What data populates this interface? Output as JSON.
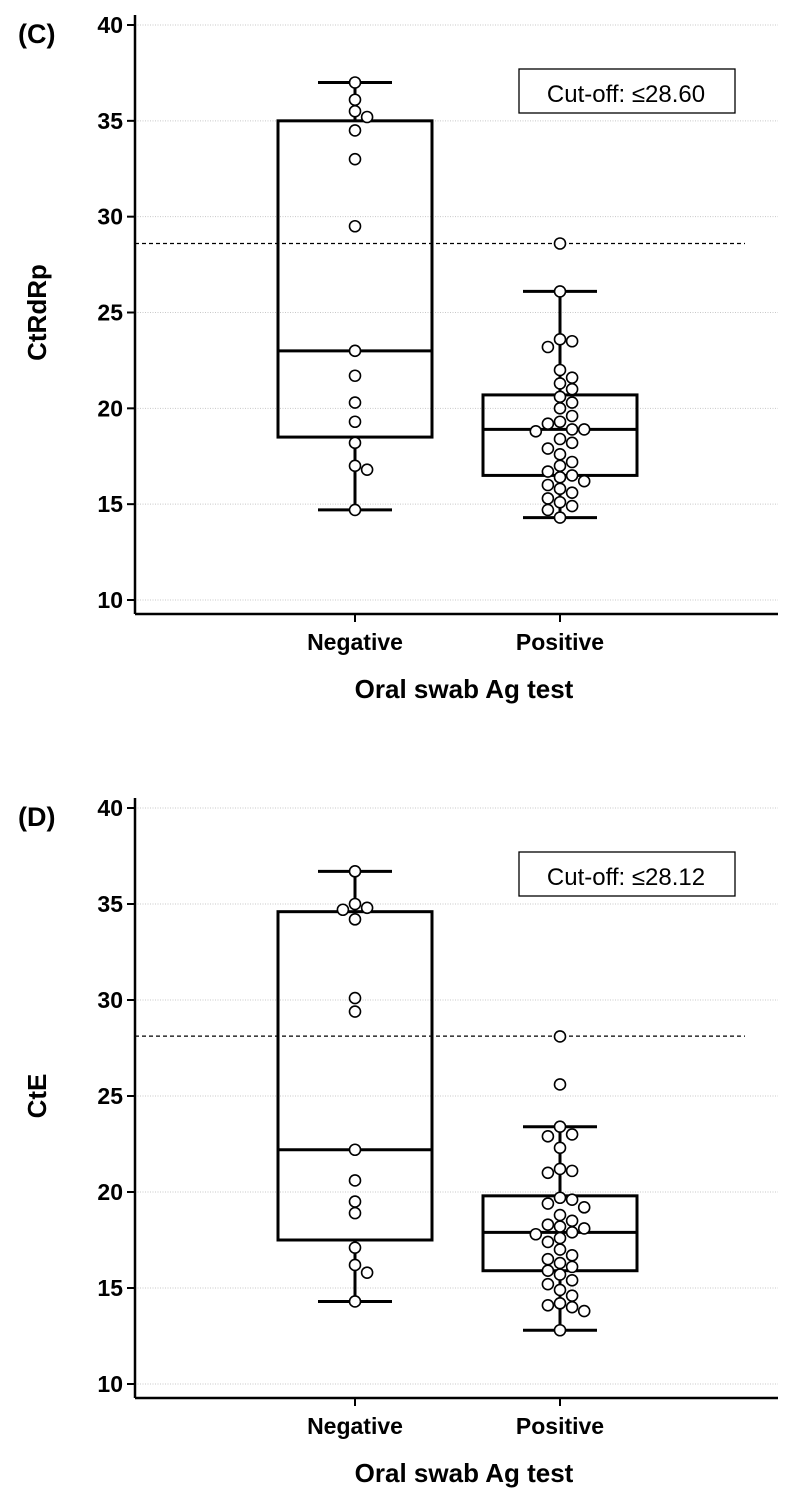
{
  "chart_data": [
    {
      "type": "box",
      "panel_label": "(C)",
      "ylabel": "CtRdRp",
      "xlabel": "Oral swab Ag test",
      "ylim": [
        10,
        40
      ],
      "yticks": [
        10,
        15,
        20,
        25,
        30,
        35,
        40
      ],
      "grid": true,
      "categories": [
        "Negative",
        "Positive"
      ],
      "cutoff": {
        "value": 28.6,
        "label": "Cut-off: ≤28.60"
      },
      "boxes": [
        {
          "category": "Negative",
          "whisker_low": 14.7,
          "q1": 18.5,
          "median": 23.0,
          "q3": 35.0,
          "whisker_high": 37.0
        },
        {
          "category": "Positive",
          "whisker_low": 14.3,
          "q1": 16.5,
          "median": 18.9,
          "q3": 20.7,
          "whisker_high": 26.1
        }
      ],
      "points": [
        {
          "category": "Negative",
          "values": [
            37.0,
            36.1,
            35.5,
            35.2,
            34.5,
            33.0,
            29.5,
            23.0,
            21.7,
            20.3,
            19.3,
            18.2,
            17.0,
            16.8,
            14.7
          ]
        },
        {
          "category": "Positive",
          "values": [
            28.6,
            26.1,
            23.6,
            23.5,
            23.2,
            22.0,
            21.6,
            21.3,
            21.0,
            20.6,
            20.3,
            20.0,
            19.6,
            19.3,
            19.2,
            18.9,
            18.9,
            18.8,
            18.4,
            18.2,
            17.9,
            17.6,
            17.2,
            17.0,
            16.7,
            16.5,
            16.4,
            16.2,
            16.0,
            15.8,
            15.6,
            15.3,
            15.1,
            14.9,
            14.7,
            14.3
          ]
        }
      ]
    },
    {
      "type": "box",
      "panel_label": "(D)",
      "ylabel": "CtE",
      "xlabel": "Oral swab Ag test",
      "ylim": [
        10,
        40
      ],
      "yticks": [
        10,
        15,
        20,
        25,
        30,
        35,
        40
      ],
      "grid": true,
      "categories": [
        "Negative",
        "Positive"
      ],
      "cutoff": {
        "value": 28.12,
        "label": "Cut-off: ≤28.12"
      },
      "boxes": [
        {
          "category": "Negative",
          "whisker_low": 14.3,
          "q1": 17.5,
          "median": 22.2,
          "q3": 34.6,
          "whisker_high": 36.7
        },
        {
          "category": "Positive",
          "whisker_low": 12.8,
          "q1": 15.9,
          "median": 17.9,
          "q3": 19.8,
          "whisker_high": 23.4
        }
      ],
      "points": [
        {
          "category": "Negative",
          "values": [
            36.7,
            35.0,
            34.8,
            34.7,
            34.2,
            30.1,
            29.4,
            22.2,
            20.6,
            19.5,
            18.9,
            17.1,
            16.2,
            15.8,
            14.3
          ]
        },
        {
          "category": "Positive",
          "values": [
            28.1,
            25.6,
            23.4,
            23.0,
            22.9,
            22.3,
            21.2,
            21.1,
            21.0,
            19.7,
            19.6,
            19.4,
            19.2,
            18.8,
            18.5,
            18.3,
            18.2,
            18.1,
            17.9,
            17.8,
            17.6,
            17.4,
            17.0,
            16.7,
            16.5,
            16.3,
            16.1,
            15.9,
            15.7,
            15.4,
            15.2,
            14.9,
            14.6,
            14.2,
            14.1,
            14.0,
            13.8,
            12.8
          ]
        }
      ]
    }
  ]
}
